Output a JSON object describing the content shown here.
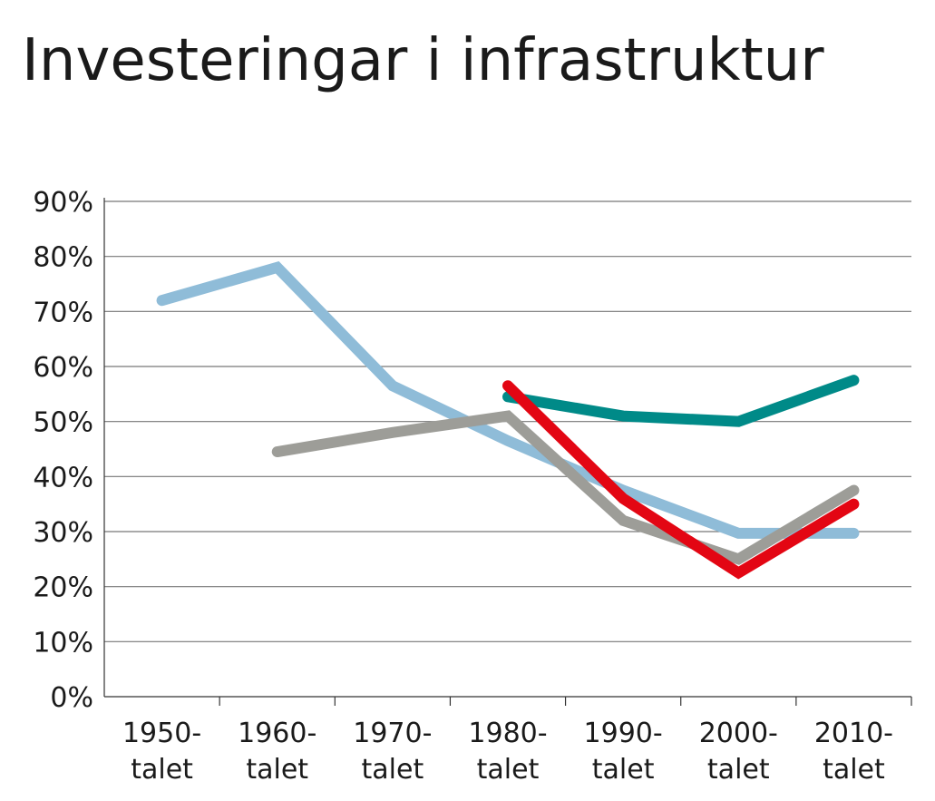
{
  "chart_data": {
    "type": "line",
    "title": "Investeringar i infrastruktur",
    "categories": [
      "1950-talet",
      "1960-talet",
      "1970-talet",
      "1980-talet",
      "1990-talet",
      "2000-talet",
      "2010-talet"
    ],
    "series": [
      {
        "color": "#8fbcd8",
        "values": [
          72,
          78,
          56.5,
          46.5,
          37.5,
          29.7,
          29.7
        ]
      },
      {
        "color": "#008a88",
        "values": [
          null,
          null,
          null,
          54.5,
          51,
          50,
          57.5
        ]
      },
      {
        "color": "#9d9d98",
        "values": [
          null,
          44.5,
          48,
          51,
          32,
          25,
          37.5
        ]
      },
      {
        "color": "#e30613",
        "values": [
          null,
          null,
          null,
          56.5,
          36,
          22.5,
          35
        ]
      }
    ],
    "ylim": [
      0,
      90
    ],
    "yticks": [
      {
        "value": 0,
        "label": "0%"
      },
      {
        "value": 10,
        "label": "10%"
      },
      {
        "value": 20,
        "label": "20%"
      },
      {
        "value": 30,
        "label": "30%"
      },
      {
        "value": 40,
        "label": "40%"
      },
      {
        "value": 50,
        "label": "50%"
      },
      {
        "value": 60,
        "label": "60%"
      },
      {
        "value": 70,
        "label": "70%"
      },
      {
        "value": 80,
        "label": "80%"
      },
      {
        "value": 90,
        "label": "90%"
      }
    ],
    "grid": true
  }
}
